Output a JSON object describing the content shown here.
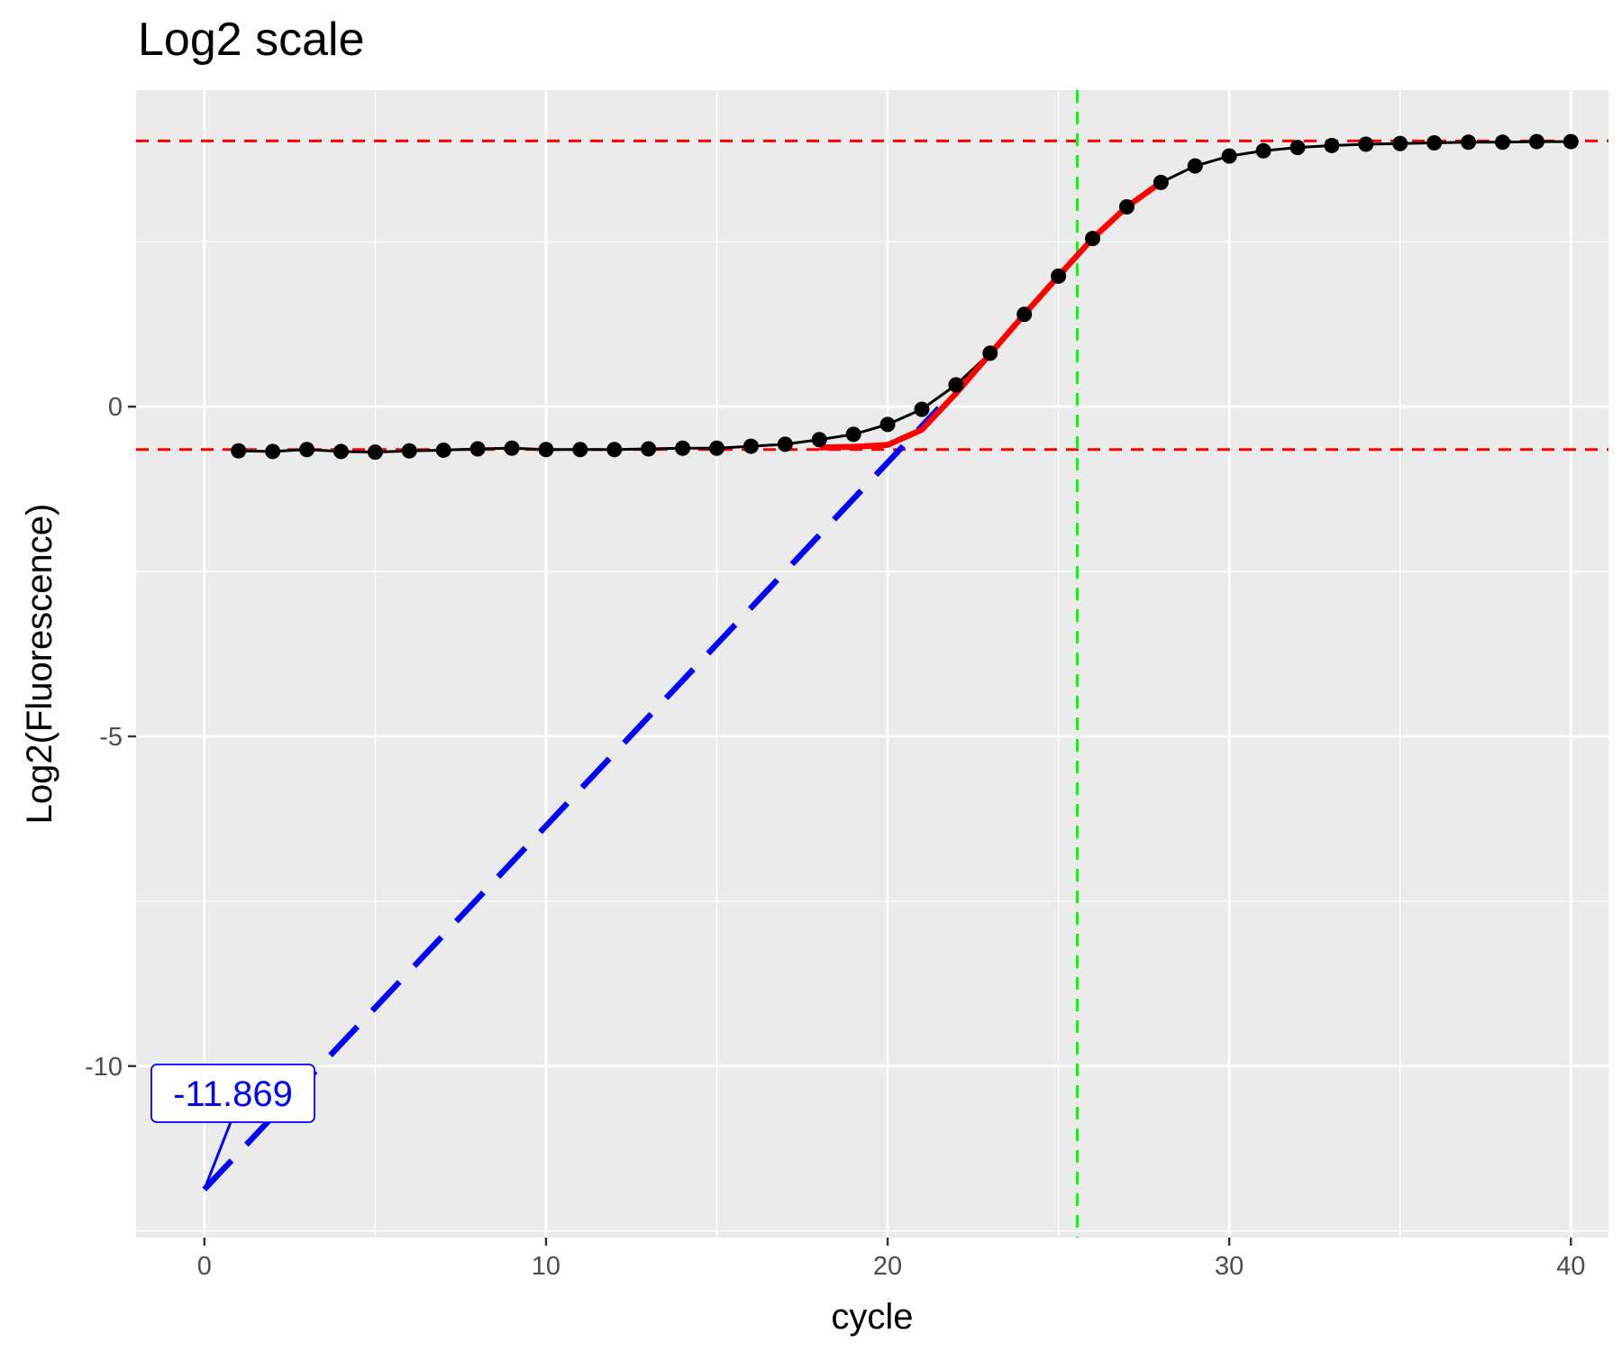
{
  "chart_data": {
    "type": "line",
    "title": "Log2 scale",
    "xlabel": "cycle",
    "ylabel": "Log2(Fluorescence)",
    "xlim": [
      -2,
      41.1
    ],
    "ylim": [
      -12.6,
      4.8
    ],
    "x_ticks": [
      0,
      10,
      20,
      30,
      40
    ],
    "x_tick_labels": [
      "0",
      "10",
      "20",
      "30",
      "40"
    ],
    "y_ticks": [
      0,
      -5,
      -10
    ],
    "y_tick_labels": [
      "0",
      "-5",
      "-10"
    ],
    "x_minor_ticks": [
      5,
      15,
      25,
      35
    ],
    "y_minor_ticks": [
      2.5,
      -2.5,
      -7.5,
      -12.5
    ],
    "grid": true,
    "panel_background": "#ebebeb",
    "series": [
      {
        "style": "line-with-points",
        "color": "#000000",
        "x": [
          1,
          2,
          3,
          4,
          5,
          6,
          7,
          8,
          9,
          10,
          11,
          12,
          13,
          14,
          15,
          16,
          17,
          18,
          19,
          20,
          21,
          22,
          23,
          24,
          25,
          26,
          27,
          28,
          29,
          30,
          31,
          32,
          33,
          34,
          35,
          36,
          37,
          38,
          39,
          40
        ],
        "y": [
          -0.67,
          -0.68,
          -0.65,
          -0.68,
          -0.69,
          -0.67,
          -0.66,
          -0.64,
          -0.63,
          -0.65,
          -0.65,
          -0.65,
          -0.64,
          -0.63,
          -0.63,
          -0.6,
          -0.57,
          -0.5,
          -0.42,
          -0.27,
          -0.04,
          0.33,
          0.81,
          1.4,
          1.98,
          2.55,
          3.03,
          3.4,
          3.65,
          3.8,
          3.88,
          3.93,
          3.96,
          3.98,
          3.99,
          4.0,
          4.01,
          4.01,
          4.02,
          4.02
        ]
      },
      {
        "style": "thick-line",
        "color": "#ff0000",
        "x": [
          18,
          19,
          20,
          21,
          22,
          23,
          24,
          25,
          26,
          27,
          28
        ],
        "y": [
          -0.62,
          -0.61,
          -0.58,
          -0.35,
          0.2,
          0.8,
          1.4,
          1.98,
          2.55,
          3.03,
          3.4
        ]
      }
    ],
    "reference_lines": [
      {
        "orientation": "horizontal",
        "value": 4.03,
        "color": "#ff0000",
        "style": "dashed"
      },
      {
        "orientation": "horizontal",
        "value": -0.65,
        "color": "#ff0000",
        "style": "dashed"
      },
      {
        "orientation": "vertical",
        "value": 25.55,
        "color": "#00ff00",
        "style": "dashed"
      },
      {
        "orientation": "diagonal",
        "from": [
          0,
          -11.869
        ],
        "to": [
          21.5,
          -0.02
        ],
        "color": "#0000ff",
        "style": "long-dashed"
      }
    ],
    "annotations": [
      {
        "label": "-11.869",
        "x": 0,
        "y": -11.869,
        "color": "#0000ff",
        "style": "label-box-with-pointer"
      }
    ]
  }
}
